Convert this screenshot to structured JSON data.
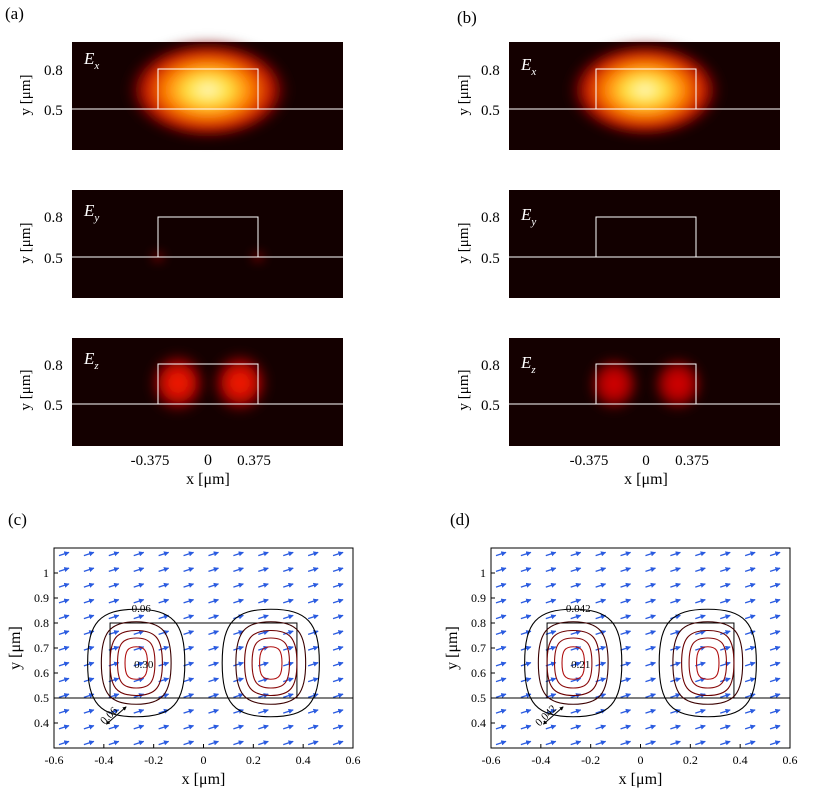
{
  "panel_labels": [
    "(a)",
    "(b)",
    "(c)",
    "(d)"
  ],
  "chart_data": [
    {
      "type": "heatmap",
      "panel": "(a)",
      "xlabel": "x [μm]",
      "ylabel": "y [μm]",
      "xticks": [
        "-0.375",
        "0",
        "0.375"
      ],
      "yticks": [
        "0.8",
        "0.5"
      ],
      "subplots": [
        {
          "label": "E",
          "sub": "x",
          "peak_intensity": 1.0,
          "lobes": "single centered"
        },
        {
          "label": "E",
          "sub": "y",
          "peak_intensity": 0.25,
          "lobes": "two corner spots at y=0.5"
        },
        {
          "label": "E",
          "sub": "z",
          "peak_intensity": 0.8,
          "lobes": "two lobes at x=±0.3"
        }
      ],
      "colormap": "hot"
    },
    {
      "type": "heatmap",
      "panel": "(b)",
      "xlabel": "x [μm]",
      "ylabel": "y [μm]",
      "xticks": [
        "-0.375",
        "0",
        "0.375"
      ],
      "yticks": [
        "0.8",
        "0.5"
      ],
      "subplots": [
        {
          "label": "E",
          "sub": "x",
          "peak_intensity": 1.0,
          "lobes": "single centered"
        },
        {
          "label": "E",
          "sub": "y",
          "peak_intensity": 0.05,
          "lobes": "none visible"
        },
        {
          "label": "E",
          "sub": "z",
          "peak_intensity": 0.6,
          "lobes": "two lobes at x=±0.3"
        }
      ],
      "colormap": "hot"
    },
    {
      "type": "contour",
      "panel": "(c)",
      "xlabel": "x [μm]",
      "ylabel": "y [μm]",
      "xlim": [
        -0.6,
        0.6
      ],
      "ylim": [
        0.3,
        1.1
      ],
      "xticks": [
        -0.6,
        -0.4,
        -0.2,
        0,
        0.2,
        0.4,
        0.6
      ],
      "yticks": [
        0.4,
        0.5,
        0.6,
        0.7,
        0.8,
        0.9,
        1
      ],
      "lobe_centers": [
        [
          -0.27,
          0.64
        ],
        [
          0.27,
          0.64
        ]
      ],
      "contour_labels": [
        "0.06",
        "0.30",
        "0.06"
      ]
    },
    {
      "type": "contour",
      "panel": "(d)",
      "xlabel": "x [μm]",
      "ylabel": "y [μm]",
      "xlim": [
        -0.6,
        0.6
      ],
      "ylim": [
        0.3,
        1.1
      ],
      "xticks": [
        -0.6,
        -0.4,
        -0.2,
        0,
        0.2,
        0.4,
        0.6
      ],
      "yticks": [
        0.4,
        0.5,
        0.6,
        0.7,
        0.8,
        0.9,
        1
      ],
      "lobe_centers": [
        [
          -0.27,
          0.64
        ],
        [
          0.27,
          0.64
        ]
      ],
      "contour_labels": [
        "0.042",
        "0.21",
        "0.042"
      ]
    }
  ]
}
